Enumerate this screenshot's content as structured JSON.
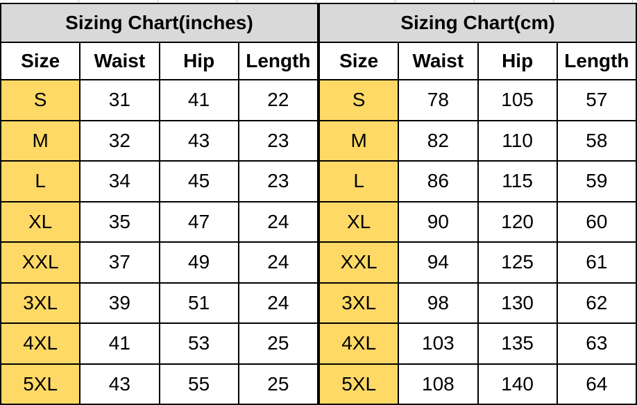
{
  "page": {
    "background": "#ffffff"
  },
  "colors": {
    "title_band_bg": "#d9d9d9",
    "size_column_bg": "#ffd966",
    "grid_border": "#000000",
    "text": "#000000",
    "top_strip_gridline": "#c9c9c9"
  },
  "chart_data": [
    {
      "type": "table",
      "title": "Sizing Chart(inches)",
      "columns": [
        "Size",
        "Waist",
        "Hip",
        "Length"
      ],
      "rows": [
        [
          "S",
          31,
          41,
          22
        ],
        [
          "M",
          32,
          43,
          23
        ],
        [
          "L",
          34,
          45,
          23
        ],
        [
          "XL",
          35,
          47,
          24
        ],
        [
          "XXL",
          37,
          49,
          24
        ],
        [
          "3XL",
          39,
          51,
          24
        ],
        [
          "4XL",
          41,
          53,
          25
        ],
        [
          "5XL",
          43,
          55,
          25
        ]
      ]
    },
    {
      "type": "table",
      "title": "Sizing Chart(cm)",
      "columns": [
        "Size",
        "Waist",
        "Hip",
        "Length"
      ],
      "rows": [
        [
          "S",
          78,
          105,
          57
        ],
        [
          "M",
          82,
          110,
          58
        ],
        [
          "L",
          86,
          115,
          59
        ],
        [
          "XL",
          90,
          120,
          60
        ],
        [
          "XXL",
          94,
          125,
          61
        ],
        [
          "3XL",
          98,
          130,
          62
        ],
        [
          "4XL",
          103,
          135,
          63
        ],
        [
          "5XL",
          108,
          140,
          64
        ]
      ]
    }
  ]
}
